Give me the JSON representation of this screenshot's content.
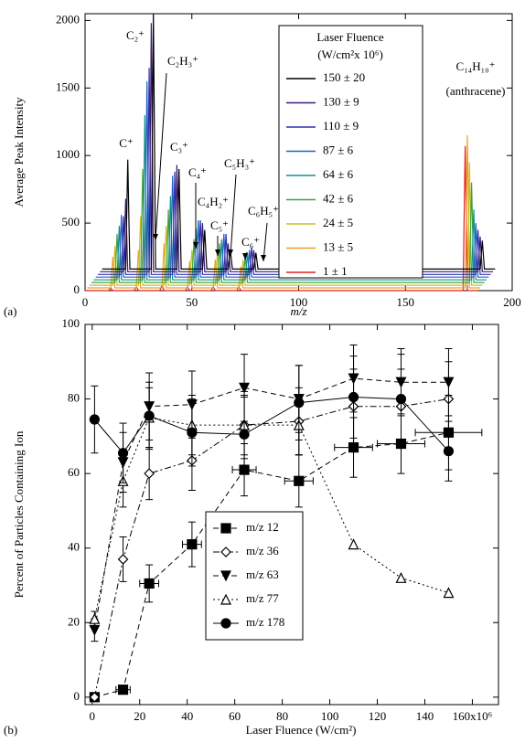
{
  "chart_data": [
    {
      "type": "line",
      "panel_label": "(a)",
      "x_label": "m/z",
      "y_label": "Average Peak Intensity",
      "xlim": [
        0,
        200
      ],
      "ylim": [
        0,
        2050
      ],
      "xticks": [
        0,
        50,
        100,
        150,
        200
      ],
      "yticks": [
        0,
        500,
        1000,
        1500,
        2000
      ],
      "legend_title": [
        "Laser Fluence",
        "(W/cm²x 10⁶)"
      ],
      "legend": "upper-right",
      "annotations": [
        "C⁺",
        "C₂⁺",
        "C₂H₃⁺",
        "C₃⁺",
        "C₄⁺",
        "C₄H₂⁺",
        "C₅⁺",
        "C₅H₃⁺",
        "C₆⁺",
        "C₆H₅⁺",
        "C₁₄H₁₀⁺",
        "(anthracene)"
      ],
      "series": [
        {
          "name": "150 ± 20",
          "color": "#000000",
          "x": [
            8,
            19,
            20,
            21,
            31,
            32,
            33,
            43,
            44,
            45,
            55,
            56,
            57,
            67,
            68,
            69,
            79,
            80,
            81,
            185,
            186,
            187,
            192
          ],
          "values": [
            160,
            160,
            970,
            160,
            160,
            2050,
            160,
            160,
            900,
            160,
            160,
            450,
            160,
            160,
            300,
            160,
            160,
            280,
            160,
            160,
            370,
            160,
            160
          ]
        },
        {
          "name": "130 ± 9",
          "color": "#3a1a7a",
          "x": [
            7,
            18,
            19,
            20,
            30,
            31,
            32,
            42,
            43,
            44,
            54,
            55,
            56,
            66,
            67,
            68,
            78,
            79,
            80,
            184,
            185,
            186,
            191
          ],
          "values": [
            140,
            140,
            680,
            140,
            140,
            1980,
            140,
            140,
            930,
            140,
            140,
            500,
            140,
            140,
            350,
            140,
            140,
            300,
            140,
            140,
            400,
            140,
            140
          ]
        },
        {
          "name": "110 ± 9",
          "color": "#3030b0",
          "x": [
            6,
            17,
            18,
            19,
            29,
            30,
            31,
            41,
            42,
            43,
            53,
            54,
            55,
            65,
            66,
            67,
            77,
            78,
            79,
            183,
            184,
            185,
            190
          ],
          "values": [
            120,
            120,
            550,
            120,
            120,
            1650,
            120,
            120,
            880,
            120,
            120,
            520,
            120,
            120,
            420,
            120,
            120,
            320,
            120,
            120,
            450,
            120,
            120
          ]
        },
        {
          "name": "87 ± 6",
          "color": "#2060c0",
          "x": [
            5,
            16,
            17,
            18,
            28,
            29,
            30,
            40,
            41,
            42,
            52,
            53,
            54,
            64,
            65,
            66,
            76,
            77,
            78,
            182,
            183,
            184,
            189
          ],
          "values": [
            100,
            100,
            560,
            100,
            100,
            1550,
            100,
            100,
            850,
            100,
            100,
            520,
            100,
            100,
            420,
            100,
            100,
            300,
            100,
            100,
            500,
            100,
            100
          ]
        },
        {
          "name": "64 ± 6",
          "color": "#109090",
          "x": [
            4,
            15,
            16,
            17,
            27,
            28,
            29,
            39,
            40,
            41,
            51,
            52,
            53,
            63,
            64,
            65,
            75,
            76,
            77,
            181,
            182,
            183,
            188
          ],
          "values": [
            80,
            80,
            480,
            80,
            80,
            1300,
            80,
            80,
            700,
            80,
            80,
            460,
            80,
            80,
            380,
            80,
            80,
            280,
            80,
            80,
            600,
            80,
            80
          ]
        },
        {
          "name": "42 ± 6",
          "color": "#40a040",
          "x": [
            3,
            14,
            15,
            16,
            26,
            27,
            28,
            38,
            39,
            40,
            50,
            51,
            52,
            62,
            63,
            64,
            74,
            75,
            76,
            180,
            181,
            182,
            187
          ],
          "values": [
            60,
            60,
            420,
            60,
            60,
            900,
            60,
            60,
            600,
            60,
            60,
            380,
            60,
            60,
            350,
            60,
            60,
            260,
            60,
            60,
            800,
            60,
            60
          ]
        },
        {
          "name": "24 ± 5",
          "color": "#c8c020",
          "x": [
            2,
            13,
            14,
            15,
            25,
            26,
            27,
            37,
            38,
            39,
            49,
            50,
            51,
            61,
            62,
            63,
            73,
            74,
            75,
            179,
            180,
            181,
            186
          ],
          "values": [
            40,
            40,
            330,
            40,
            40,
            550,
            40,
            40,
            480,
            40,
            40,
            300,
            40,
            40,
            300,
            40,
            40,
            230,
            40,
            40,
            950,
            40,
            40
          ]
        },
        {
          "name": "13 ± 5",
          "color": "#f0a020",
          "x": [
            1,
            12,
            13,
            14,
            24,
            25,
            26,
            36,
            37,
            38,
            48,
            49,
            50,
            60,
            61,
            62,
            72,
            73,
            74,
            178,
            179,
            180,
            185
          ],
          "values": [
            20,
            20,
            250,
            20,
            20,
            300,
            20,
            20,
            350,
            20,
            20,
            220,
            20,
            20,
            230,
            20,
            20,
            180,
            20,
            20,
            1150,
            20,
            20
          ]
        },
        {
          "name": "1 ± 1",
          "color": "#e02020",
          "x": [
            0,
            11,
            12,
            13,
            23,
            24,
            25,
            35,
            36,
            37,
            47,
            48,
            49,
            59,
            60,
            61,
            71,
            72,
            73,
            177,
            178,
            179,
            184
          ],
          "values": [
            0,
            0,
            20,
            0,
            0,
            30,
            0,
            0,
            40,
            0,
            0,
            30,
            0,
            0,
            30,
            0,
            0,
            30,
            0,
            0,
            1070,
            0,
            0
          ]
        }
      ]
    },
    {
      "type": "scatter",
      "panel_label": "(b)",
      "x_label": "Laser Fluence (W/cm²)",
      "y_label": "Percent of Particles Containing Ion",
      "xlim": [
        -3,
        171
      ],
      "ylim": [
        -2,
        100
      ],
      "xticks": [
        0,
        20,
        40,
        60,
        80,
        100,
        120,
        140,
        {
          "value": 160,
          "label": "160x10⁶"
        }
      ],
      "yticks": [
        0,
        20,
        40,
        60,
        80,
        100
      ],
      "legend": "lower-center",
      "x": [
        1,
        13,
        24,
        42,
        64,
        87,
        110,
        130,
        150
      ],
      "series": [
        {
          "name": "m/z 12",
          "color": "#000000",
          "marker": "square",
          "filled": true,
          "linestyle": "dashed",
          "values": [
            0,
            2,
            30.5,
            41,
            61,
            58,
            67,
            68,
            71
          ],
          "errors": [
            1,
            1,
            5,
            6,
            7,
            7,
            8,
            8,
            10
          ],
          "x_errors": [
            null,
            3,
            4,
            4,
            5,
            6,
            8,
            10,
            14
          ]
        },
        {
          "name": "m/z 36",
          "color": "#000000",
          "marker": "diamond",
          "filled": false,
          "linestyle": "dashdot",
          "values": [
            0,
            37,
            60,
            63.5,
            73,
            74,
            78,
            78,
            80
          ],
          "errors": [
            1,
            6,
            7,
            8,
            9,
            9,
            10,
            10,
            10
          ]
        },
        {
          "name": "m/z 63",
          "color": "#000000",
          "marker": "triangle-down",
          "filled": true,
          "linestyle": "dashed",
          "values": [
            18,
            63,
            78,
            78.5,
            83,
            80,
            85.5,
            84.5,
            84.5
          ],
          "errors": [
            3,
            8,
            9,
            9,
            9,
            9,
            9,
            9,
            9
          ]
        },
        {
          "name": "m/z 77",
          "color": "#000000",
          "marker": "triangle-up",
          "filled": false,
          "linestyle": "dotted",
          "values": [
            21,
            58,
            75,
            73,
            73,
            73,
            41,
            32,
            28
          ],
          "errors": [
            2,
            7,
            8,
            8,
            8,
            8,
            null,
            null,
            null
          ]
        },
        {
          "name": "m/z 178",
          "color": "#000000",
          "marker": "circle",
          "filled": true,
          "linestyle": "solid",
          "values": [
            74.5,
            65.5,
            75.5,
            71,
            70.5,
            79,
            80.5,
            80,
            66
          ],
          "errors": [
            9,
            8,
            9,
            9,
            10,
            10,
            11,
            12,
            8
          ]
        }
      ]
    }
  ]
}
